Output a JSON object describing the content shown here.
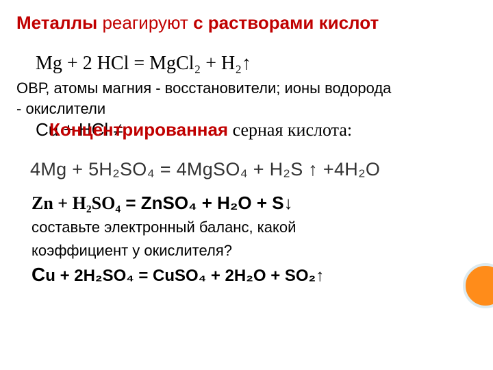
{
  "title": {
    "p1": "Металлы ",
    "p2": "реагируют ",
    "p3": "с растворами кислот"
  },
  "eq1": "Mg   +  2 HCl  =  MgCl₂  +  H₂↑",
  "ovr_lines": {
    "l1": " ОВР,  атомы магния  -  восстановители;  ионы водорода",
    "l2": " -  окислители"
  },
  "cuhcl": "Cu  +  HCl  ≠",
  "konc": {
    "red": "Концентрированная",
    "rest": "   серная   кислота:"
  },
  "img_eq": "4Mg + 5H₂SO₄ = 4MgSO₄ + H₂S ↑ +4H₂O",
  "zn_eq": {
    "p1": "Zn  +  H₂SO₄",
    "p2": "  =  ZnSO₄  +  H₂O  +  S↓"
  },
  "task": {
    "l1": "составьте электронный баланс, какой",
    "l2": "коэффициент у окислителя?"
  },
  "cu_eq": {
    "cu": "С",
    "rest": "u + 2H₂SO₄  =  CuSO₄  + 2H₂O  +  SO₂↑"
  },
  "colors": {
    "accent": "#c00000",
    "circle_fill": "#ff8c1a",
    "circle_border": "#dceaf0"
  }
}
